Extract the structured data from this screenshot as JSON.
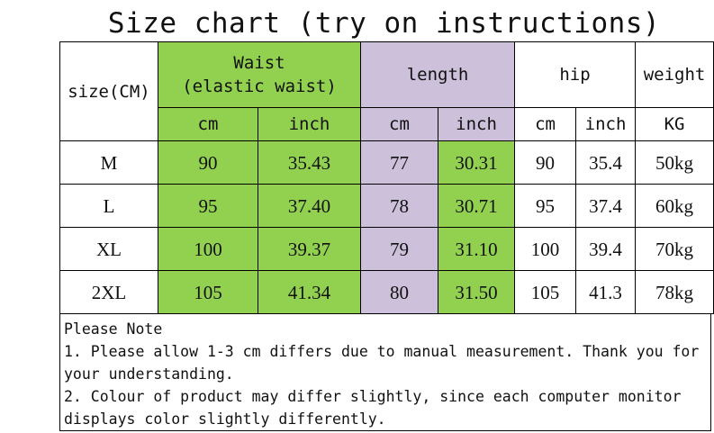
{
  "title": "Size chart (try on instructions)",
  "header": {
    "size_label": "size(CM)",
    "waist_line1": "Waist",
    "waist_line2": "(elastic waist)",
    "length": "length",
    "hip": "hip",
    "weight": "weight",
    "units": [
      "cm",
      "inch",
      "cm",
      "inch",
      "cm",
      "inch",
      "KG"
    ]
  },
  "rows": [
    {
      "size": "M",
      "waist_cm": "90",
      "waist_in": "35.43",
      "len_cm": "77",
      "len_in": "30.31",
      "hip_cm": "90",
      "hip_in": "35.4",
      "weight": "50kg"
    },
    {
      "size": "L",
      "waist_cm": "95",
      "waist_in": "37.40",
      "len_cm": "78",
      "len_in": "30.71",
      "hip_cm": "95",
      "hip_in": "37.4",
      "weight": "60kg"
    },
    {
      "size": "XL",
      "waist_cm": "100",
      "waist_in": "39.37",
      "len_cm": "79",
      "len_in": "31.10",
      "hip_cm": "100",
      "hip_in": "39.4",
      "weight": "70kg"
    },
    {
      "size": "2XL",
      "waist_cm": "105",
      "waist_in": "41.34",
      "len_cm": "80",
      "len_in": "31.50",
      "hip_cm": "105",
      "hip_in": "41.3",
      "weight": "78kg"
    }
  ],
  "note": {
    "heading": "Please Note",
    "line1": "1. Please allow 1-3 cm differs due to manual measurement. Thank you for your understanding.",
    "line2": "2. Colour of product may differ slightly, since each computer monitor displays color slightly differently."
  },
  "colors": {
    "waist_bg": "#92d050",
    "length_bg": "#ccc0da",
    "length_inch_bg": "#92d050"
  }
}
